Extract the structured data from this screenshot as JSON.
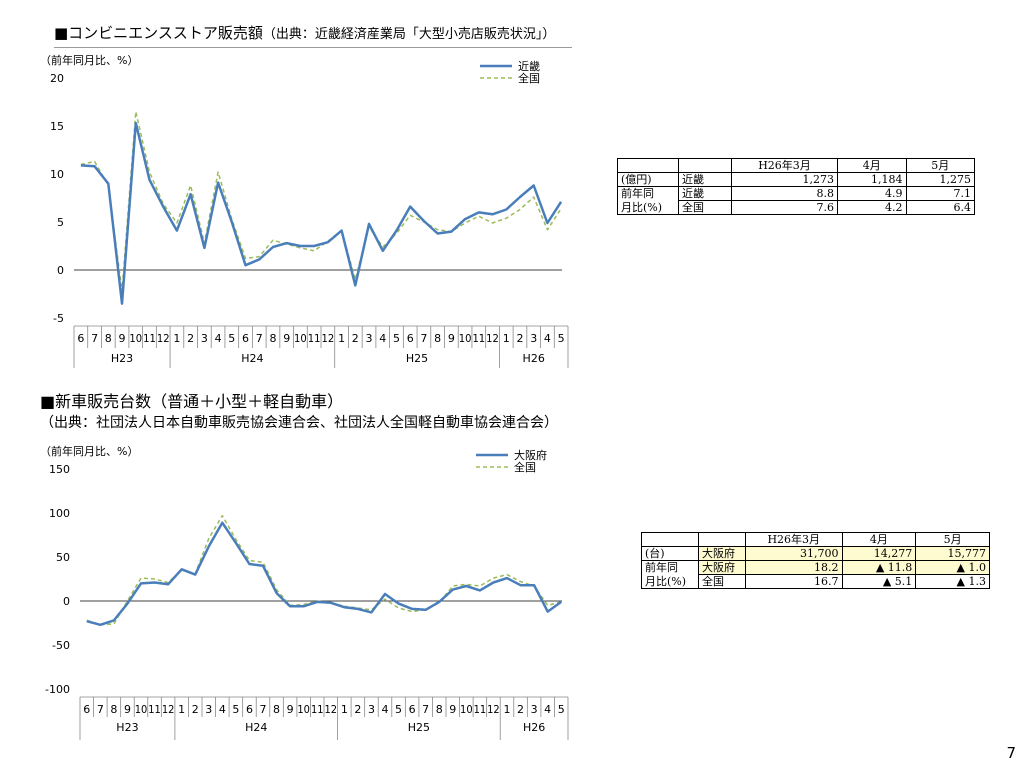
{
  "page_number": "7",
  "section1": {
    "title_main": "■コンビニエンスストア販売額",
    "title_source": "（出典：近畿経済産業局「大型小売店販売状況」）",
    "table": {
      "headers": [
        "",
        "",
        "H26年3月",
        "4月",
        "5月"
      ],
      "rows": [
        [
          "(億円)",
          "近畿",
          "1,273",
          "1,184",
          "1,275"
        ],
        [
          "前年同",
          "近畿",
          "8.8",
          "4.9",
          "7.1"
        ],
        [
          "月比(%)",
          "全国",
          "7.6",
          "4.2",
          "6.4"
        ]
      ]
    }
  },
  "section2": {
    "title_main": "■新車販売台数（普通＋小型＋軽自動車）",
    "subtitle": "（出典：社団法人日本自動車販売協会連合会、社団法人全国軽自動車協会連合会）",
    "table": {
      "headers": [
        "",
        "",
        "H26年3月",
        "4月",
        "5月"
      ],
      "rows": [
        [
          "(台)",
          "大阪府",
          "31,700",
          "14,277",
          "15,777"
        ],
        [
          "前年同",
          "大阪府",
          "18.2",
          "▲ 11.8",
          "▲ 1.0"
        ],
        [
          "月比(%)",
          "全国",
          "16.7",
          "▲ 5.1",
          "▲ 1.3"
        ]
      ]
    }
  },
  "chart_data": [
    {
      "type": "line",
      "unit_label": "（前年同月比、%）",
      "ylim": [
        -5,
        20
      ],
      "yticks": [
        -5,
        0,
        5,
        10,
        15,
        20
      ],
      "categories": [
        "6",
        "7",
        "8",
        "9",
        "10",
        "11",
        "12",
        "1",
        "2",
        "3",
        "4",
        "5",
        "6",
        "7",
        "8",
        "9",
        "10",
        "11",
        "12",
        "1",
        "2",
        "3",
        "4",
        "5",
        "6",
        "7",
        "8",
        "9",
        "10",
        "11",
        "12",
        "1",
        "2",
        "3",
        "4",
        "5"
      ],
      "year_groups": [
        {
          "label": "H23",
          "count": 7
        },
        {
          "label": "H24",
          "count": 12
        },
        {
          "label": "H25",
          "count": 12
        },
        {
          "label": "H26",
          "count": 5
        }
      ],
      "legend_position": "top-right",
      "series": [
        {
          "name": "近畿",
          "color": "#4a7ebb",
          "style": "solid",
          "values": [
            10.9,
            10.8,
            9.0,
            -3.5,
            15.3,
            9.4,
            6.6,
            4.1,
            7.9,
            2.3,
            9.1,
            5.0,
            0.5,
            1.1,
            2.4,
            2.8,
            2.5,
            2.5,
            2.9,
            4.1,
            -1.6,
            4.8,
            2.0,
            4.1,
            6.6,
            5.1,
            3.8,
            4.0,
            5.3,
            6.0,
            5.8,
            6.3,
            7.6,
            8.8,
            4.9,
            7.1
          ]
        },
        {
          "name": "全国",
          "color": "#9bbb59",
          "style": "dashed",
          "values": [
            11.0,
            11.3,
            8.8,
            -2.2,
            16.5,
            10.2,
            6.9,
            4.9,
            8.8,
            2.8,
            10.2,
            5.3,
            1.2,
            1.4,
            3.1,
            2.7,
            2.3,
            2.0,
            3.0,
            4.1,
            -1.0,
            4.5,
            2.4,
            3.8,
            5.7,
            5.0,
            4.2,
            4.0,
            4.9,
            5.6,
            4.9,
            5.4,
            6.3,
            7.6,
            4.2,
            6.4
          ]
        }
      ]
    },
    {
      "type": "line",
      "unit_label": "（前年同月比、%）",
      "ylim": [
        -100,
        150
      ],
      "yticks": [
        -100,
        -50,
        0,
        50,
        100,
        150
      ],
      "categories": [
        "6",
        "7",
        "8",
        "9",
        "10",
        "11",
        "12",
        "1",
        "2",
        "3",
        "4",
        "5",
        "6",
        "7",
        "8",
        "9",
        "10",
        "11",
        "12",
        "1",
        "2",
        "3",
        "4",
        "5",
        "6",
        "7",
        "8",
        "9",
        "10",
        "11",
        "12",
        "1",
        "2",
        "3",
        "4",
        "5"
      ],
      "year_groups": [
        {
          "label": "H23",
          "count": 7
        },
        {
          "label": "H24",
          "count": 12
        },
        {
          "label": "H25",
          "count": 12
        },
        {
          "label": "H26",
          "count": 5
        }
      ],
      "legend_position": "top-right",
      "series": [
        {
          "name": "大阪府",
          "color": "#4a7ebb",
          "style": "solid",
          "values": [
            -23,
            -27,
            -22,
            -3,
            20,
            21,
            19,
            36,
            30,
            62,
            89,
            66,
            42,
            40,
            9,
            -6,
            -6,
            -1,
            -2,
            -7,
            -9,
            -13,
            8,
            -3,
            -9,
            -10,
            -1,
            13,
            17,
            12,
            21,
            26,
            18,
            18,
            -12,
            -1
          ]
        },
        {
          "name": "全国",
          "color": "#9bbb59",
          "style": "dashed",
          "values": [
            -22,
            -27,
            -26,
            0,
            26,
            25,
            21,
            35,
            31,
            71,
            97,
            70,
            46,
            44,
            13,
            -5,
            -4,
            0,
            -2,
            -6,
            -8,
            -10,
            2,
            -8,
            -12,
            -10,
            -2,
            17,
            19,
            17,
            26,
            30,
            22,
            17,
            -5,
            -1
          ]
        }
      ]
    }
  ]
}
